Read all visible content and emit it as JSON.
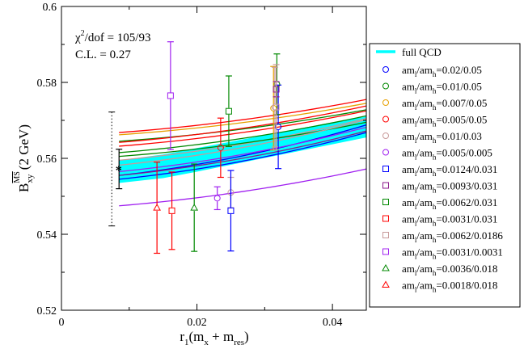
{
  "chart_data": {
    "type": "scatter",
    "xlabel_main": "r",
    "xlabel_sub1": "1",
    "xlabel_mid": "(m",
    "xlabel_sub2": "x",
    "xlabel_plus": " + m",
    "xlabel_sub3": "res",
    "xlabel_close": ")",
    "ylabel_main": "B",
    "ylabel_sub": "xy",
    "ylabel_sup": "MS",
    "ylabel_rest": "(2 GeV)",
    "xlim": [
      0,
      0.045
    ],
    "ylim": [
      0.52,
      0.6
    ],
    "xticks": [
      0,
      0.02,
      0.04
    ],
    "xtick_labels": [
      "0",
      "0.02",
      "0.04"
    ],
    "yticks": [
      0.52,
      0.54,
      0.56,
      0.58,
      0.6
    ],
    "ytick_labels": [
      "0.52",
      "0.54",
      "0.56",
      "0.58",
      "0.6"
    ],
    "annotation_chi_main": "χ",
    "annotation_chi_sup": "2",
    "annotation_chi_rest": "/dof = 105/93",
    "annotation_cl": "C.L. = 0.27",
    "band": {
      "name": "full QCD",
      "color": "#00ffff",
      "x": [
        0.0085,
        0.015,
        0.02,
        0.025,
        0.03,
        0.035,
        0.04,
        0.045
      ],
      "lower": [
        0.5535,
        0.5548,
        0.5565,
        0.5583,
        0.5601,
        0.5619,
        0.5637,
        0.5655
      ],
      "upper": [
        0.5595,
        0.561,
        0.5627,
        0.5644,
        0.5661,
        0.5678,
        0.5695,
        0.571
      ]
    },
    "extrapolated_point": {
      "x": 0.0085,
      "y": 0.5572,
      "err_stat": 0.0052,
      "err_total": 0.015,
      "marker": "*"
    },
    "series": [
      {
        "name_pre": "am",
        "sub1": "l",
        "name_mid": "/am",
        "sub2": "h",
        "name_val": "=0.02/0.05",
        "marker": "circle",
        "color": "#0000ff",
        "points": [
          {
            "x": 0.032,
            "y": 0.5683,
            "err": 0.011
          }
        ],
        "curve": [
          0.5555,
          0.5688
        ]
      },
      {
        "name_pre": "am",
        "sub1": "l",
        "name_mid": "/am",
        "sub2": "h",
        "name_val": "=0.01/0.05",
        "marker": "circle",
        "color": "#008800",
        "points": [
          {
            "x": 0.0318,
            "y": 0.5795,
            "err": 0.008
          }
        ],
        "curve": [
          0.5645,
          0.5728
        ]
      },
      {
        "name_pre": "am",
        "sub1": "l",
        "name_mid": "/am",
        "sub2": "h",
        "name_val": "=0.007/0.05",
        "marker": "circle",
        "color": "#e6a000",
        "points": [
          {
            "x": 0.0313,
            "y": 0.5732,
            "err": 0.011
          }
        ],
        "curve": [
          0.5662,
          0.5745
        ]
      },
      {
        "name_pre": "am",
        "sub1": "l",
        "name_mid": "/am",
        "sub2": "h",
        "name_val": "=0.005/0.05",
        "marker": "circle",
        "color": "#ff0000",
        "points": [
          {
            "x": 0.0235,
            "y": 0.5628,
            "err": 0.0078
          }
        ],
        "curve": [
          0.5668,
          0.5755
        ]
      },
      {
        "name_pre": "am",
        "sub1": "l",
        "name_mid": "/am",
        "sub2": "h",
        "name_val": "=0.01/0.03",
        "marker": "circle",
        "color": "#c89a9a",
        "points": [
          {
            "x": 0.025,
            "y": 0.551,
            "err": 0.004
          },
          {
            "x": 0.0315,
            "y": 0.5735,
            "err": 0.0105
          }
        ],
        "curve": [
          0.5595,
          0.5705
        ]
      },
      {
        "name_pre": "am",
        "sub1": "l",
        "name_mid": "/am",
        "sub2": "h",
        "name_val": "=0.005/0.005",
        "marker": "circle",
        "color": "#a020f0",
        "points": [
          {
            "x": 0.023,
            "y": 0.5495,
            "err": 0.003
          }
        ],
        "curve": [
          0.5475,
          0.5572
        ]
      },
      {
        "name_pre": "am",
        "sub1": "l",
        "name_mid": "/am",
        "sub2": "h",
        "name_val": "=0.0124/0.031",
        "marker": "square",
        "color": "#0000ff",
        "points": [
          {
            "x": 0.025,
            "y": 0.5462,
            "err": 0.0106
          }
        ],
        "curve": [
          0.5545,
          0.5668
        ]
      },
      {
        "name_pre": "am",
        "sub1": "l",
        "name_mid": "/am",
        "sub2": "h",
        "name_val": "=0.0093/0.031",
        "marker": "square",
        "color": "#8b1a8b",
        "points": [
          {
            "x": 0.0317,
            "y": 0.5782,
            "err": 0.002
          }
        ],
        "curve": [
          0.5555,
          0.5672
        ]
      },
      {
        "name_pre": "am",
        "sub1": "l",
        "name_mid": "/am",
        "sub2": "h",
        "name_val": "=0.0062/0.031",
        "marker": "square",
        "color": "#008800",
        "points": [
          {
            "x": 0.0247,
            "y": 0.5724,
            "err": 0.0093
          }
        ],
        "curve": [
          0.5605,
          0.5695
        ]
      },
      {
        "name_pre": "am",
        "sub1": "l",
        "name_mid": "/am",
        "sub2": "h",
        "name_val": "=0.0031/0.031",
        "marker": "square",
        "color": "#ff0000",
        "points": [
          {
            "x": 0.0163,
            "y": 0.5462,
            "err": 0.0102
          }
        ],
        "curve": [
          0.5632,
          0.5725
        ]
      },
      {
        "name_pre": "am",
        "sub1": "l",
        "name_mid": "/am",
        "sub2": "h",
        "name_val": "=0.0062/0.0186",
        "marker": "square",
        "color": "#c89a9a",
        "points": [
          {
            "x": 0.0317,
            "y": 0.5735,
            "err": 0.0112
          }
        ],
        "curve": [
          0.5582,
          0.5702
        ]
      },
      {
        "name_pre": "am",
        "sub1": "l",
        "name_mid": "/am",
        "sub2": "h",
        "name_val": "=0.0031/0.0031",
        "marker": "square",
        "color": "#a020f0",
        "points": [
          {
            "x": 0.0161,
            "y": 0.5765,
            "err": 0.0142
          }
        ],
        "curve": [
          0.5565,
          0.5682
        ]
      },
      {
        "name_pre": "am",
        "sub1": "l",
        "name_mid": "/am",
        "sub2": "h",
        "name_val": "=0.0036/0.018",
        "marker": "triangle",
        "color": "#008800",
        "points": [
          {
            "x": 0.0196,
            "y": 0.547,
            "err": 0.0115
          }
        ],
        "curve": [
          0.5615,
          0.5712
        ]
      },
      {
        "name_pre": "am",
        "sub1": "l",
        "name_mid": "/am",
        "sub2": "h",
        "name_val": "=0.0018/0.018",
        "marker": "triangle",
        "color": "#ff0000",
        "points": [
          {
            "x": 0.0141,
            "y": 0.547,
            "err": 0.012
          }
        ],
        "curve": [
          0.5642,
          0.5738
        ]
      }
    ]
  }
}
